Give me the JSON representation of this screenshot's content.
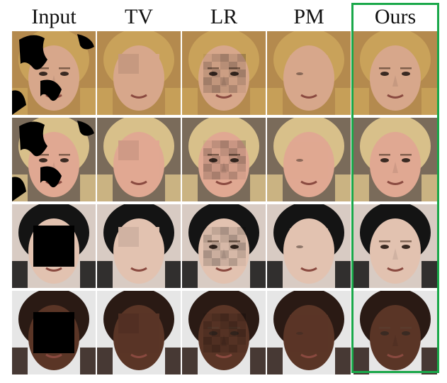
{
  "columns": [
    {
      "key": "input",
      "label": "Input"
    },
    {
      "key": "tv",
      "label": "TV"
    },
    {
      "key": "lr",
      "label": "LR"
    },
    {
      "key": "pm",
      "label": "PM"
    },
    {
      "key": "ours",
      "label": "Ours"
    }
  ],
  "rows": [
    {
      "name": "row-1-blonde-woman",
      "skin": "#d7a78b",
      "hair": "#c9a25a",
      "bg": "#b48a4e",
      "mask": "blobs"
    },
    {
      "name": "row-2-blonde-woman-smiling",
      "skin": "#e0a892",
      "hair": "#d8c08a",
      "bg": "#7a6b5a",
      "mask": "blobs"
    },
    {
      "name": "row-3-black-haired-person",
      "skin": "#e2c2b0",
      "hair": "#141414",
      "bg": "#d8cbc3",
      "mask": "square"
    },
    {
      "name": "row-4-dark-skinned-man",
      "skin": "#5a3526",
      "hair": "#2a1a14",
      "bg": "#e6e6e6",
      "mask": "square"
    }
  ],
  "highlight": {
    "column": "ours",
    "color": "#1aa84a"
  }
}
